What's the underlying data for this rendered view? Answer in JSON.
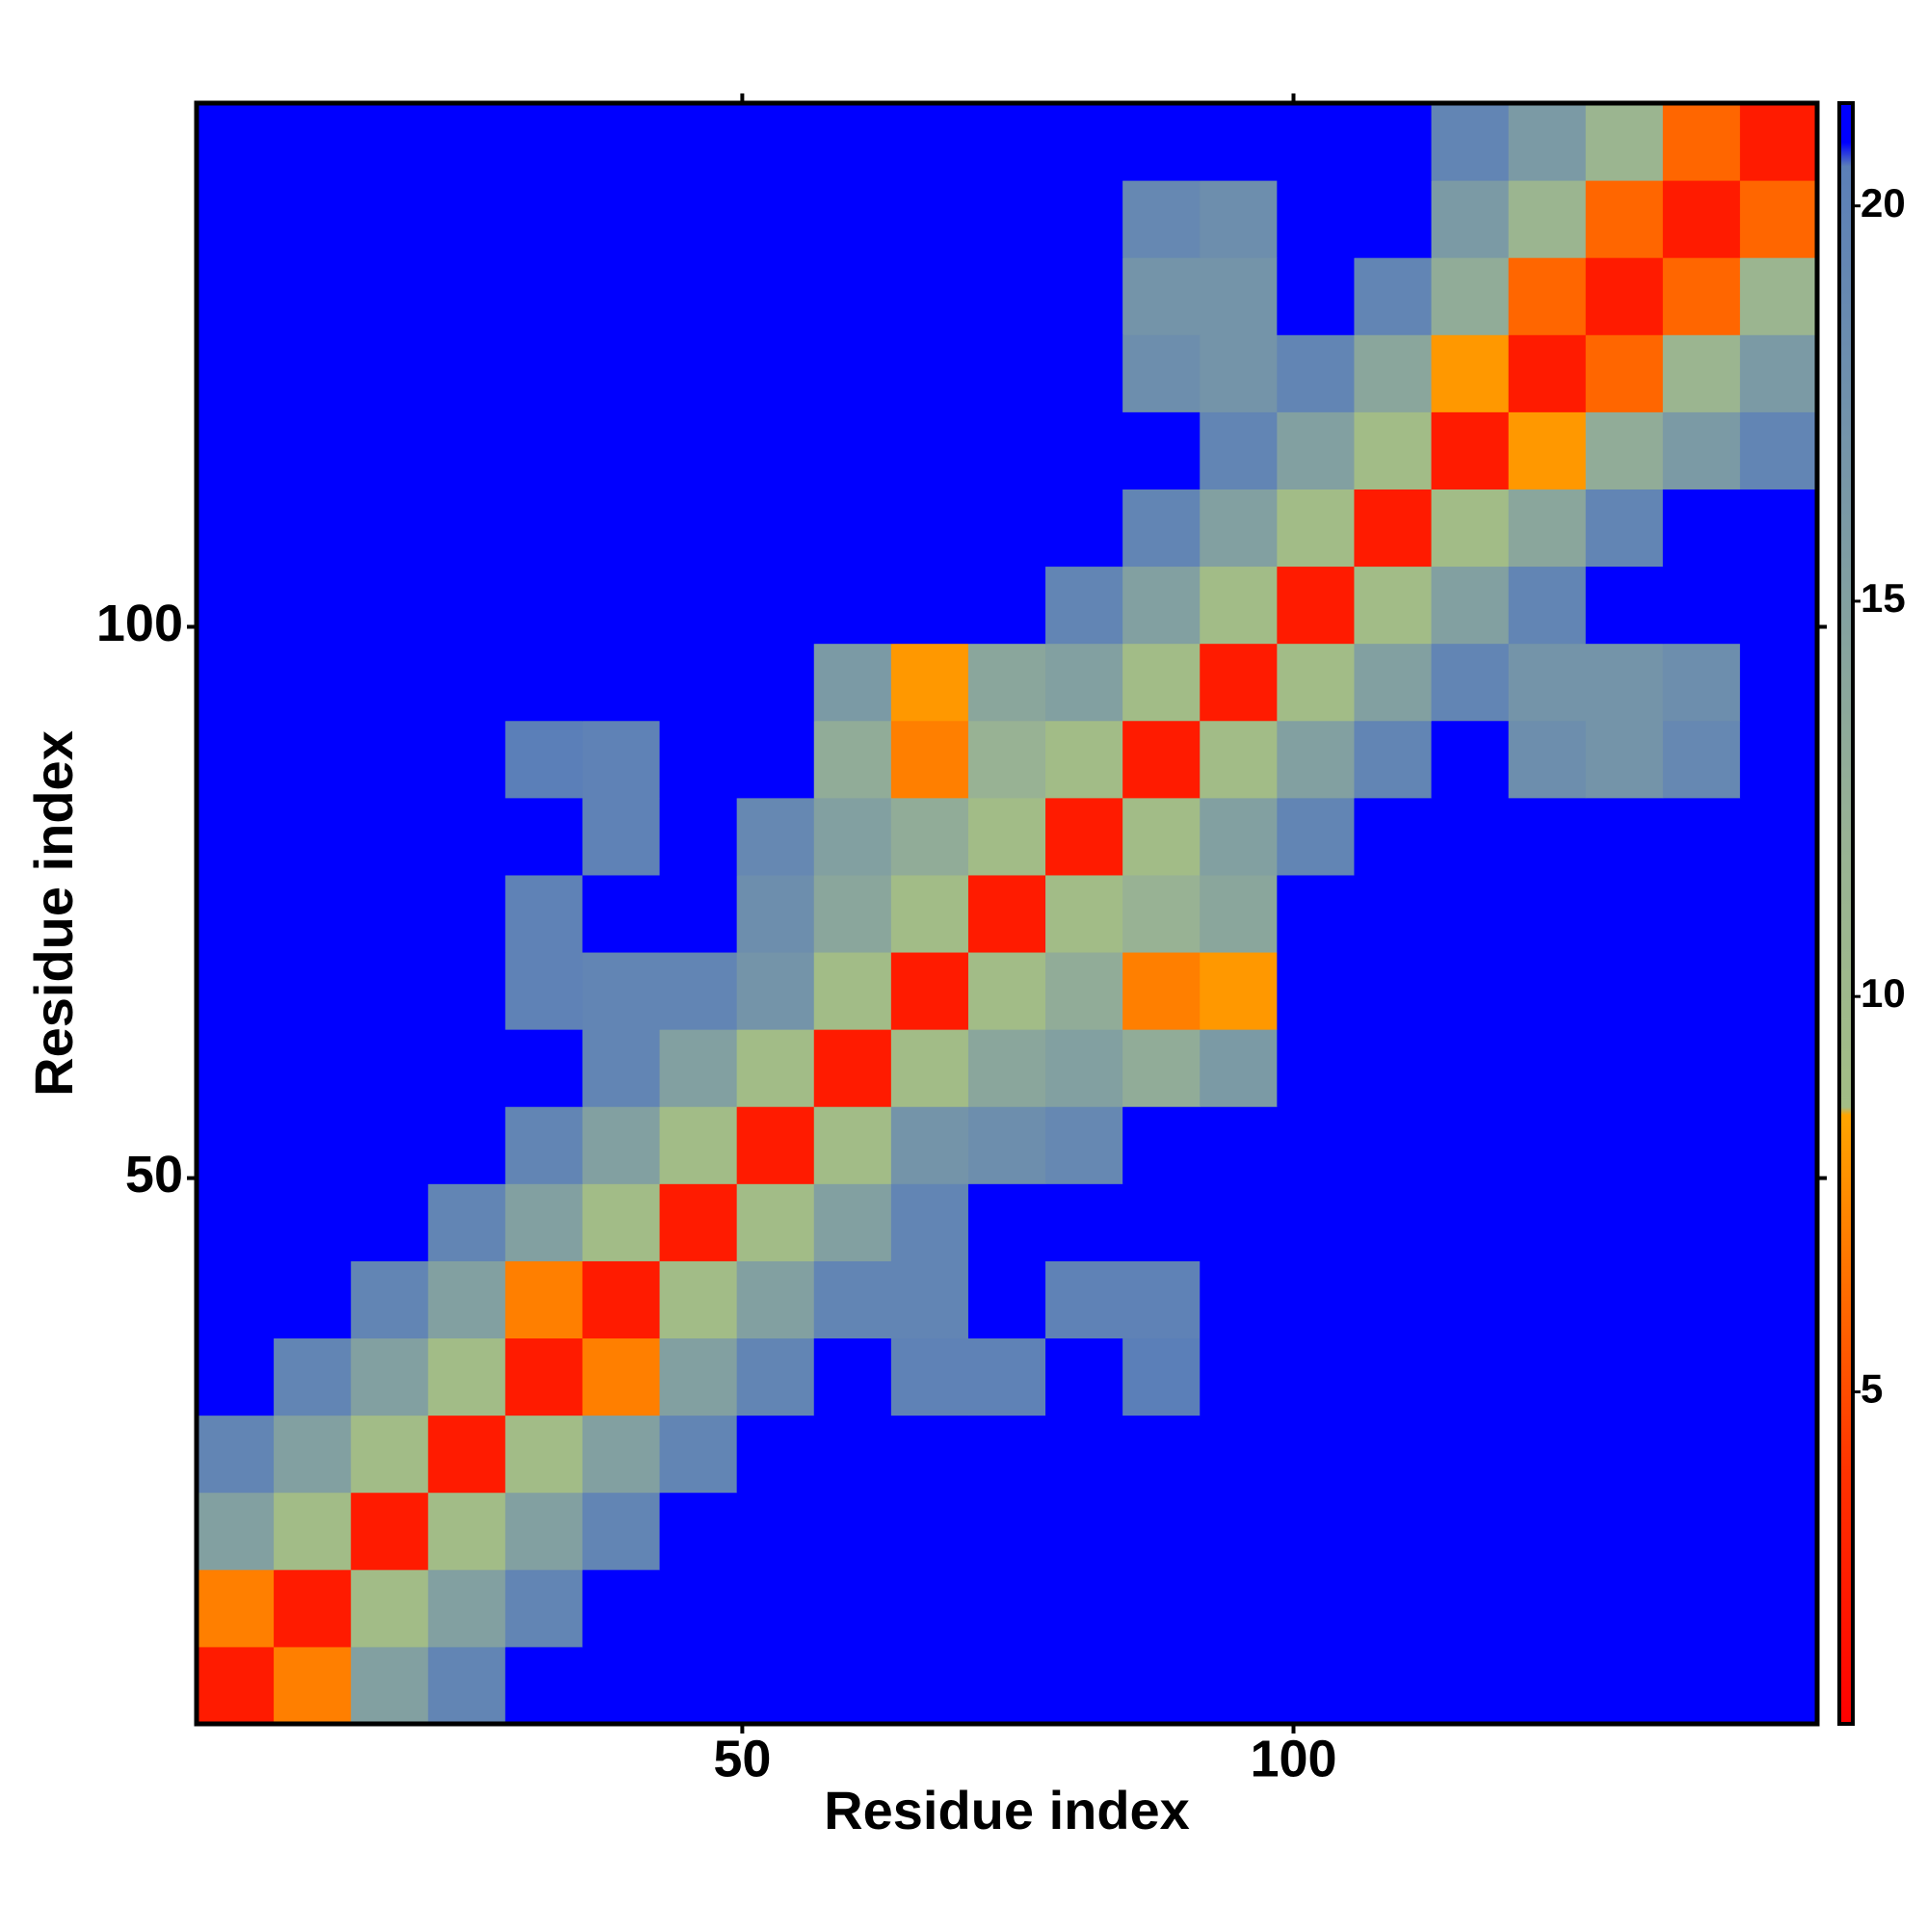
{
  "chart_data": {
    "type": "heatmap",
    "x_label": "Residue index",
    "y_label": "Residue index",
    "x": [
      4,
      11,
      18,
      25,
      32,
      39,
      46,
      53,
      60,
      67,
      74,
      81,
      88,
      95,
      102,
      109,
      116,
      123,
      130,
      137,
      144
    ],
    "y": [
      4,
      11,
      18,
      25,
      32,
      39,
      46,
      53,
      60,
      67,
      74,
      81,
      88,
      95,
      102,
      109,
      116,
      123,
      130,
      137,
      144
    ],
    "z": [
      [
        2.5,
        7,
        15,
        19.5,
        21,
        21,
        21,
        21,
        21,
        21,
        21,
        21,
        21,
        21,
        21,
        21,
        21,
        21,
        21,
        21,
        21
      ],
      [
        7,
        2.5,
        9,
        15,
        19.5,
        21,
        21,
        21,
        21,
        21,
        21,
        21,
        21,
        21,
        21,
        21,
        21,
        21,
        21,
        21,
        21
      ],
      [
        15,
        9,
        2.5,
        9,
        15,
        19.5,
        21,
        21,
        21,
        21,
        21,
        21,
        21,
        21,
        21,
        21,
        21,
        21,
        21,
        21,
        21
      ],
      [
        19.5,
        15,
        9,
        2.5,
        9,
        15,
        19.5,
        21,
        21,
        21,
        21,
        21,
        21,
        21,
        21,
        21,
        21,
        21,
        21,
        21,
        21
      ],
      [
        21,
        19.5,
        15,
        9,
        2.5,
        7,
        15,
        19.5,
        21,
        20,
        20,
        21,
        20.5,
        21,
        21,
        21,
        21,
        21,
        21,
        21,
        21
      ],
      [
        21,
        21,
        19.5,
        15,
        7,
        2.5,
        9,
        15,
        19.5,
        19.5,
        21,
        20,
        20,
        21,
        21,
        21,
        21,
        21,
        21,
        21,
        21
      ],
      [
        21,
        21,
        21,
        19.5,
        15,
        9,
        2.5,
        9,
        15,
        19.5,
        21,
        21,
        21,
        21,
        21,
        21,
        21,
        21,
        21,
        21,
        21
      ],
      [
        21,
        21,
        21,
        21,
        19.5,
        15,
        9,
        2.5,
        9,
        17,
        18,
        19,
        21,
        21,
        21,
        21,
        21,
        21,
        21,
        21,
        21
      ],
      [
        21,
        21,
        21,
        21,
        21,
        19.5,
        15,
        9,
        2.5,
        9,
        14,
        15,
        13,
        16,
        21,
        21,
        21,
        21,
        21,
        21,
        21
      ],
      [
        21,
        21,
        21,
        21,
        20,
        19.5,
        19.5,
        17,
        9,
        2.5,
        9,
        13,
        7,
        8,
        21,
        21,
        21,
        21,
        21,
        21,
        21
      ],
      [
        21,
        21,
        21,
        21,
        20,
        21,
        21,
        18,
        14,
        9,
        2.5,
        9,
        12,
        14,
        21,
        21,
        21,
        21,
        21,
        21,
        21
      ],
      [
        21,
        21,
        21,
        21,
        21,
        20,
        21,
        19,
        15,
        13,
        9,
        2.5,
        9,
        15,
        19.5,
        21,
        21,
        21,
        21,
        21,
        21
      ],
      [
        21,
        21,
        21,
        21,
        20.5,
        20,
        21,
        21,
        13,
        7,
        12,
        9,
        2.5,
        9,
        15,
        19.5,
        21,
        18,
        17,
        19,
        21
      ],
      [
        21,
        21,
        21,
        21,
        21,
        21,
        21,
        21,
        16,
        8,
        14,
        15,
        9,
        2.5,
        9,
        15,
        19.5,
        17,
        17,
        18,
        21
      ],
      [
        21,
        21,
        21,
        21,
        21,
        21,
        21,
        21,
        21,
        21,
        21,
        19.5,
        15,
        9,
        2.5,
        9,
        15,
        19.5,
        21,
        21,
        21
      ],
      [
        21,
        21,
        21,
        21,
        21,
        21,
        21,
        21,
        21,
        21,
        21,
        21,
        19.5,
        15,
        9,
        2.5,
        9,
        14,
        19.5,
        21,
        21
      ],
      [
        21,
        21,
        21,
        21,
        21,
        21,
        21,
        21,
        21,
        21,
        21,
        21,
        21,
        19.5,
        15,
        9,
        2.5,
        8,
        13,
        16,
        19.5
      ],
      [
        21,
        21,
        21,
        21,
        21,
        21,
        21,
        21,
        21,
        21,
        21,
        21,
        18,
        17,
        19.5,
        14,
        8,
        2.5,
        6,
        11,
        16
      ],
      [
        21,
        21,
        21,
        21,
        21,
        21,
        21,
        21,
        21,
        21,
        21,
        21,
        17,
        17,
        21,
        19.5,
        13,
        6,
        2.5,
        6,
        11
      ],
      [
        21,
        21,
        21,
        21,
        21,
        21,
        21,
        21,
        21,
        21,
        21,
        21,
        19,
        18,
        21,
        21,
        16,
        11,
        6,
        2.5,
        6
      ],
      [
        21,
        21,
        21,
        21,
        21,
        21,
        21,
        21,
        21,
        21,
        21,
        21,
        21,
        21,
        21,
        21,
        19.5,
        16,
        11,
        6,
        2.5
      ]
    ],
    "xlim": [
      0.5,
      147.5
    ],
    "ylim": [
      0.5,
      147.5
    ],
    "xticks": [
      50,
      100
    ],
    "yticks": [
      50,
      100
    ],
    "zlim": [
      0.8,
      21.3
    ],
    "zticks": [
      5,
      10,
      15,
      20
    ],
    "colorscale": [
      {
        "value": 0.8,
        "color": "#ff0000"
      },
      {
        "value": 4,
        "color": "#ff3300"
      },
      {
        "value": 8.5,
        "color": "#ffa500"
      },
      {
        "value": 8.6,
        "color": "#a3bd85"
      },
      {
        "value": 12,
        "color": "#98b294"
      },
      {
        "value": 20.5,
        "color": "#5b7fb8"
      },
      {
        "value": 20.8,
        "color": "#0000ff"
      },
      {
        "value": 21.3,
        "color": "#0000ff"
      }
    ]
  }
}
